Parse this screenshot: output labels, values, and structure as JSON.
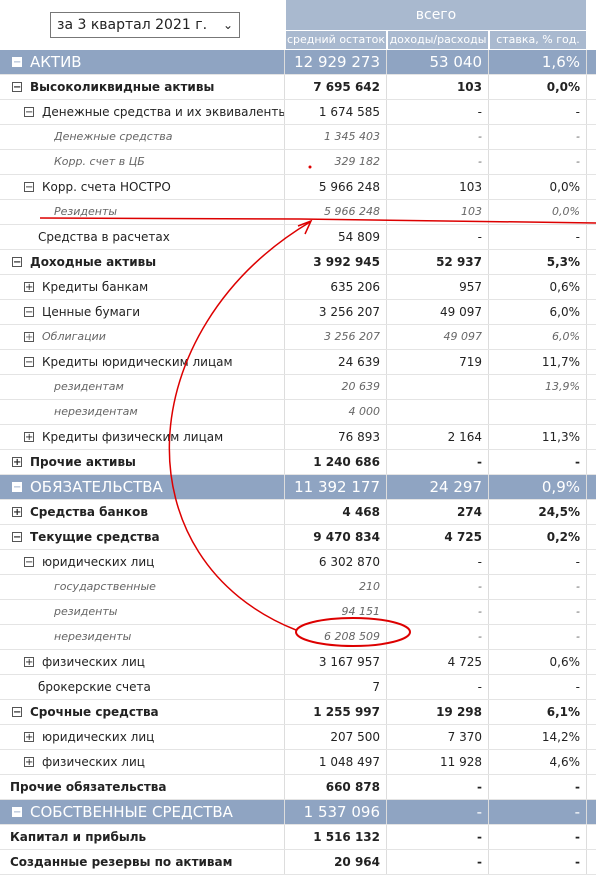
{
  "header": {
    "period": "за 3 квартал 2021 г.",
    "group": "всего",
    "columns": [
      "средний остаток",
      "доходы/расходы",
      "ставка, % год."
    ]
  },
  "table": {
    "rows": [
      {
        "icon": "−",
        "label": "АКТИВ",
        "style": "section",
        "indent": 0,
        "cells": [
          "12 929 273",
          "53 040",
          "1,6%"
        ]
      },
      {
        "icon": "−",
        "label": "Высоколиквидные активы",
        "style": "bold",
        "indent": 0,
        "cells": [
          "7 695 642",
          "103",
          "0,0%"
        ]
      },
      {
        "icon": "−",
        "label": "Денежные средства и их эквиваленты",
        "style": "normal",
        "indent": 1,
        "cells": [
          "1 674 585",
          "-",
          "-"
        ]
      },
      {
        "label": "Денежные средства",
        "style": "italic",
        "indent": 2,
        "cells": [
          "1 345 403",
          "-",
          "-"
        ]
      },
      {
        "label": "Корр. счет в ЦБ",
        "style": "italic",
        "indent": 2,
        "cells": [
          "329 182",
          "-",
          "-"
        ]
      },
      {
        "icon": "−",
        "label": "Корр. счета НОСТРО",
        "style": "normal",
        "indent": 1,
        "cells": [
          "5 966 248",
          "103",
          "0,0%"
        ]
      },
      {
        "label": "Резиденты",
        "style": "italic",
        "indent": 2,
        "cells": [
          "5 966 248",
          "103",
          "0,0%"
        ]
      },
      {
        "label": "Средства в расчетах",
        "style": "normal",
        "indent": 1,
        "cells": [
          "54 809",
          "-",
          "-"
        ]
      },
      {
        "icon": "−",
        "label": "Доходные активы",
        "style": "bold",
        "indent": 0,
        "cells": [
          "3 992 945",
          "52 937",
          "5,3%"
        ]
      },
      {
        "icon": "+",
        "label": "Кредиты банкам",
        "style": "normal",
        "indent": 1,
        "cells": [
          "635 206",
          "957",
          "0,6%"
        ]
      },
      {
        "icon": "−",
        "label": "Ценные бумаги",
        "style": "normal",
        "indent": 1,
        "cells": [
          "3 256 207",
          "49 097",
          "6,0%"
        ]
      },
      {
        "icon": "+",
        "label": "Облигации",
        "style": "italic",
        "indent": 1,
        "cells": [
          "3 256 207",
          "49 097",
          "6,0%"
        ]
      },
      {
        "icon": "−",
        "label": "Кредиты юридическим лицам",
        "style": "normal",
        "indent": 1,
        "cells": [
          "24 639",
          "719",
          "11,7%"
        ]
      },
      {
        "label": "резидентам",
        "style": "italic",
        "indent": 2,
        "cells": [
          "20 639",
          null,
          "13,9%"
        ]
      },
      {
        "label": "нерезидентам",
        "style": "italic",
        "indent": 2,
        "cells": [
          "4 000",
          null,
          null
        ]
      },
      {
        "icon": "+",
        "label": "Кредиты физическим лицам",
        "style": "normal",
        "indent": 1,
        "cells": [
          "76 893",
          "2 164",
          "11,3%"
        ]
      },
      {
        "icon": "+",
        "label": "Прочие активы",
        "style": "bold",
        "indent": 0,
        "cells": [
          "1 240 686",
          "-",
          "-"
        ]
      },
      {
        "icon": "−",
        "label": "ОБЯЗАТЕЛЬСТВА",
        "style": "section",
        "indent": 0,
        "cells": [
          "11 392 177",
          "24 297",
          "0,9%"
        ]
      },
      {
        "icon": "+",
        "label": "Средства банков",
        "style": "bold",
        "indent": 0,
        "cells": [
          "4 468",
          "274",
          "24,5%"
        ]
      },
      {
        "icon": "−",
        "label": "Текущие средства",
        "style": "bold",
        "indent": 0,
        "cells": [
          "9 470 834",
          "4 725",
          "0,2%"
        ]
      },
      {
        "icon": "−",
        "label": "юридических лиц",
        "style": "normal",
        "indent": 1,
        "cells": [
          "6 302 870",
          "-",
          "-"
        ]
      },
      {
        "label": "государственные",
        "style": "italic",
        "indent": 2,
        "cells": [
          "210",
          "-",
          "-"
        ]
      },
      {
        "label": "резиденты",
        "style": "italic",
        "indent": 2,
        "cells": [
          "94 151",
          "-",
          "-"
        ]
      },
      {
        "label": "нерезиденты",
        "style": "italic",
        "indent": 2,
        "cells": [
          "6 208 509",
          "-",
          "-"
        ]
      },
      {
        "icon": "+",
        "label": "физических лиц",
        "style": "normal",
        "indent": 1,
        "cells": [
          "3 167 957",
          "4 725",
          "0,6%"
        ]
      },
      {
        "label": "брокерские счета",
        "style": "normal",
        "indent": 1,
        "cells": [
          "7",
          "-",
          "-"
        ]
      },
      {
        "icon": "−",
        "label": "Срочные средства",
        "style": "bold",
        "indent": 0,
        "cells": [
          "1 255 997",
          "19 298",
          "6,1%"
        ]
      },
      {
        "icon": "+",
        "label": "юридических лиц",
        "style": "normal",
        "indent": 1,
        "cells": [
          "207 500",
          "7 370",
          "14,2%"
        ]
      },
      {
        "icon": "+",
        "label": "физических лиц",
        "style": "normal",
        "indent": 1,
        "cells": [
          "1 048 497",
          "11 928",
          "4,6%"
        ]
      },
      {
        "label": "Прочие обязательства",
        "style": "bold",
        "indent": 0,
        "cells": [
          "660 878",
          "-",
          "-"
        ]
      },
      {
        "icon": "−",
        "label": "СОБСТВЕННЫЕ СРЕДСТВА",
        "style": "section",
        "indent": 0,
        "cells": [
          "1 537 096",
          "-",
          "-"
        ]
      },
      {
        "label": "Капитал и прибыль",
        "style": "bold",
        "indent": 0,
        "cells": [
          "1 516 132",
          "-",
          "-"
        ]
      },
      {
        "label": "Созданные резервы по активам",
        "style": "bold",
        "indent": 0,
        "cells": [
          "20 964",
          "-",
          "-"
        ]
      }
    ]
  }
}
